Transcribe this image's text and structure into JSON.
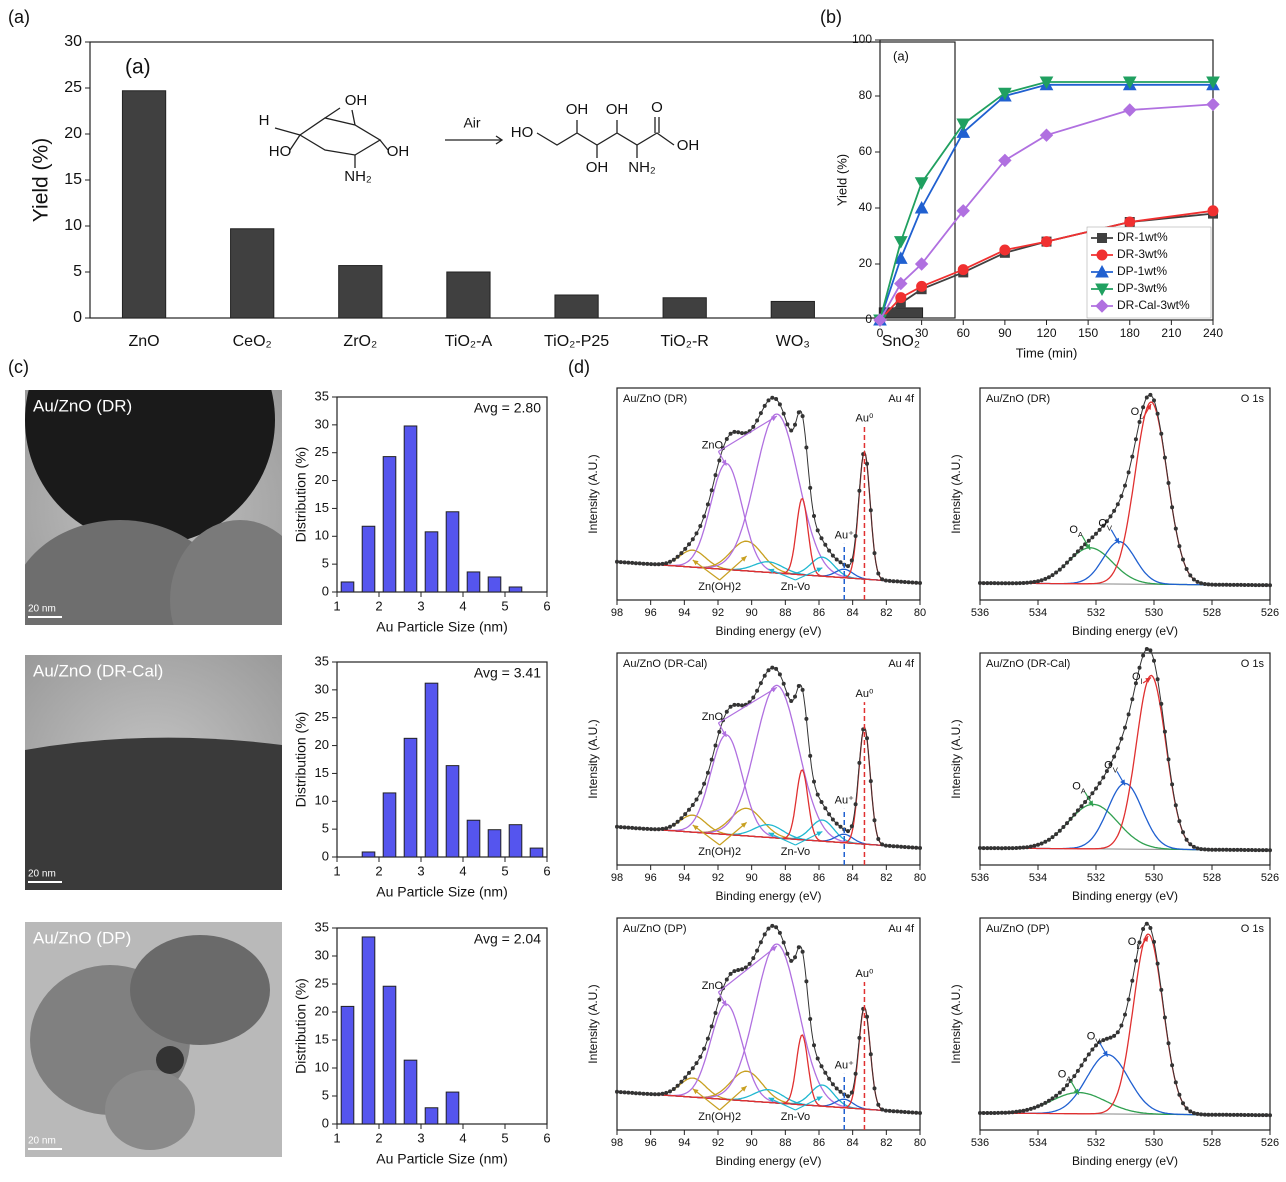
{
  "panel_labels": [
    "(a)",
    "(b)",
    "(c)",
    "(d)"
  ],
  "images": [
    {
      "label": "Au/ZnO (DR)",
      "scale": "20 nm"
    },
    {
      "label": "Au/ZnO (DR-Cal)",
      "scale": "20 nm"
    },
    {
      "label": "Au/ZnO (DP)",
      "scale": "20 nm"
    }
  ],
  "chart_data": [
    {
      "type": "bar",
      "annotation": "(a)",
      "ylabel": "Yield (%)",
      "categories": [
        "ZnO",
        "CeO₂",
        "ZrO₂",
        "TiO₂-A",
        "TiO₂-P25",
        "TiO₂-R",
        "WO₃",
        "SnO₂"
      ],
      "values": [
        24.7,
        9.7,
        5.7,
        5.0,
        2.5,
        2.2,
        1.8,
        1.1
      ],
      "color": "#404040",
      "ylim": [
        0,
        30
      ],
      "yticks": [
        0,
        5,
        10,
        15,
        20,
        25,
        30
      ],
      "scheme": {
        "reactant_labels": [
          "OH",
          "H",
          "HO",
          "OH",
          "NH₂"
        ],
        "arrow_label": "Air",
        "product_labels": [
          "HO",
          "OH",
          "OH",
          "O",
          "OH",
          "OH",
          "NH₂"
        ]
      }
    },
    {
      "type": "line",
      "annotation": "(a)",
      "xlabel": "Time (min)",
      "ylabel": "Yield (%)",
      "x": [
        0,
        15,
        30,
        60,
        90,
        120,
        180,
        240
      ],
      "xlim": [
        0,
        240
      ],
      "xticks": [
        0,
        30,
        60,
        90,
        120,
        150,
        180,
        210,
        240
      ],
      "ylim": [
        0,
        100
      ],
      "yticks": [
        0,
        20,
        40,
        60,
        80,
        100
      ],
      "legend": "lower right",
      "series": [
        {
          "name": "DR-1wt%",
          "color": "#404040",
          "marker": "square",
          "values": [
            0,
            6,
            11,
            17,
            24,
            28,
            35,
            38
          ]
        },
        {
          "name": "DR-3wt%",
          "color": "#f03030",
          "marker": "circle",
          "values": [
            0,
            8,
            12,
            18,
            25,
            28,
            35,
            39
          ]
        },
        {
          "name": "DP-1wt%",
          "color": "#2060d0",
          "marker": "triangle-up",
          "values": [
            0,
            22,
            40,
            67,
            80,
            84,
            84,
            84
          ]
        },
        {
          "name": "DP-3wt%",
          "color": "#20a060",
          "marker": "triangle-down",
          "values": [
            0,
            28,
            49,
            70,
            81,
            85,
            85,
            85
          ]
        },
        {
          "name": "DR-Cal-3wt%",
          "color": "#b070e0",
          "marker": "diamond",
          "values": [
            0,
            13,
            20,
            39,
            57,
            66,
            75,
            77
          ]
        }
      ]
    },
    {
      "type": "bar",
      "annotation": "Avg = 2.80",
      "xlabel": "Au Particle Size (nm)",
      "ylabel": "Distribution (%)",
      "color": "#5555ee",
      "x": [
        1.25,
        1.75,
        2.25,
        2.75,
        3.25,
        3.75,
        4.25,
        4.75,
        5.25
      ],
      "values": [
        1.8,
        11.8,
        24.3,
        29.8,
        10.8,
        14.4,
        3.6,
        2.7,
        0.9
      ],
      "xlim": [
        1,
        6
      ],
      "xticks": [
        1,
        2,
        3,
        4,
        5,
        6
      ],
      "ylim": [
        0,
        35
      ],
      "yticks": [
        0,
        5,
        10,
        15,
        20,
        25,
        30,
        35
      ]
    },
    {
      "type": "bar",
      "annotation": "Avg = 3.41",
      "xlabel": "Au Particle Size (nm)",
      "ylabel": "Distribution (%)",
      "color": "#5555ee",
      "x": [
        1.75,
        2.25,
        2.75,
        3.25,
        3.75,
        4.25,
        4.75,
        5.25,
        5.75
      ],
      "values": [
        0.9,
        11.5,
        21.3,
        31.2,
        16.4,
        6.6,
        4.9,
        5.8,
        1.6
      ],
      "xlim": [
        1,
        6
      ],
      "xticks": [
        1,
        2,
        3,
        4,
        5,
        6
      ],
      "ylim": [
        0,
        35
      ],
      "yticks": [
        0,
        5,
        10,
        15,
        20,
        25,
        30,
        35
      ]
    },
    {
      "type": "bar",
      "annotation": "Avg = 2.04",
      "xlabel": "Au Particle Size (nm)",
      "ylabel": "Distribution (%)",
      "color": "#5555ee",
      "x": [
        1.25,
        1.75,
        2.25,
        2.75,
        3.25,
        3.75
      ],
      "values": [
        21.0,
        33.4,
        24.6,
        11.4,
        2.9,
        5.7
      ],
      "xlim": [
        1,
        6
      ],
      "xticks": [
        1,
        2,
        3,
        4,
        5,
        6
      ],
      "ylim": [
        0,
        35
      ],
      "yticks": [
        0,
        5,
        10,
        15,
        20,
        25,
        30,
        35
      ]
    },
    {
      "type": "spectrum",
      "title": "Au/ZnO (DR)",
      "region": "Au 4f",
      "xlabel": "Binding energy (eV)",
      "ylabel": "Intensity (A.U.)",
      "xlim": [
        98,
        80
      ],
      "xticks": [
        98,
        96,
        94,
        92,
        90,
        88,
        86,
        84,
        82,
        80
      ],
      "ylim": [
        0,
        100
      ],
      "background_x": [
        98,
        80
      ],
      "background": [
        18,
        8
      ],
      "components": [
        {
          "name": "Zn(OH)2",
          "color": "#c8a020",
          "peaks": [
            {
              "center": 93.5,
              "height": 8,
              "fwhm": 1.8
            },
            {
              "center": 90.3,
              "height": 14,
              "fwhm": 2.2
            }
          ]
        },
        {
          "name": "ZnO",
          "color": "#b070e0",
          "peaks": [
            {
              "center": 91.5,
              "height": 50,
              "fwhm": 2.2
            },
            {
              "center": 88.5,
              "height": 75,
              "fwhm": 3.0
            }
          ]
        },
        {
          "name": "Zn-Vo",
          "color": "#20b8d0",
          "peaks": [
            {
              "center": 89.0,
              "height": 5,
              "fwhm": 2.0
            },
            {
              "center": 85.8,
              "height": 9,
              "fwhm": 1.6
            }
          ]
        },
        {
          "name": "Au⁺",
          "color": "#2060d0",
          "dashed": true,
          "peaks": [
            {
              "center": 84.5,
              "height": 4,
              "fwhm": 1.2
            }
          ]
        },
        {
          "name": "Au⁰",
          "color": "#e03030",
          "dashed": true,
          "peaks": [
            {
              "center": 83.3,
              "height": 60,
              "fwhm": 0.8
            },
            {
              "center": 87.0,
              "height": 36,
              "fwhm": 0.8
            }
          ]
        }
      ]
    },
    {
      "type": "spectrum",
      "title": "Au/ZnO (DR)",
      "region": "O 1s",
      "xlabel": "Binding energy (eV)",
      "ylabel": "Intensity (A.U.)",
      "xlim": [
        536,
        526
      ],
      "xticks": [
        536,
        534,
        532,
        530,
        528,
        526
      ],
      "ylim": [
        0,
        100
      ],
      "background_x": [
        536,
        526
      ],
      "background": [
        8,
        7
      ],
      "components": [
        {
          "name": {
            "text": "O",
            "sub": "A"
          },
          "color": "#30a050",
          "peaks": [
            {
              "center": 532.2,
              "height": 17,
              "fwhm": 1.8
            }
          ]
        },
        {
          "name": {
            "text": "O",
            "sub": "V"
          },
          "color": "#2060d0",
          "peaks": [
            {
              "center": 531.2,
              "height": 20,
              "fwhm": 1.3
            }
          ]
        },
        {
          "name": {
            "text": "O",
            "sub": "L"
          },
          "color": "#e03030",
          "peaks": [
            {
              "center": 530.1,
              "height": 86,
              "fwhm": 1.3
            }
          ]
        }
      ]
    },
    {
      "type": "spectrum",
      "title": "Au/ZnO (DR-Cal)",
      "region": "Au 4f",
      "xlabel": "Binding energy (eV)",
      "ylabel": "Intensity (A.U.)",
      "xlim": [
        98,
        80
      ],
      "xticks": [
        98,
        96,
        94,
        92,
        90,
        88,
        86,
        84,
        82,
        80
      ],
      "ylim": [
        0,
        100
      ],
      "background_x": [
        98,
        80
      ],
      "background": [
        18,
        8
      ],
      "components": [
        {
          "name": "Zn(OH)2",
          "color": "#c8a020",
          "peaks": [
            {
              "center": 93.5,
              "height": 8,
              "fwhm": 1.8
            },
            {
              "center": 90.3,
              "height": 13,
              "fwhm": 2.2
            }
          ]
        },
        {
          "name": "ZnO",
          "color": "#b070e0",
          "peaks": [
            {
              "center": 91.5,
              "height": 47,
              "fwhm": 2.2
            },
            {
              "center": 88.5,
              "height": 72,
              "fwhm": 3.0
            }
          ]
        },
        {
          "name": "Zn-Vo",
          "color": "#20b8d0",
          "peaks": [
            {
              "center": 89.0,
              "height": 6,
              "fwhm": 2.0
            },
            {
              "center": 85.8,
              "height": 10,
              "fwhm": 1.6
            }
          ]
        },
        {
          "name": "Au⁺",
          "color": "#2060d0",
          "dashed": true,
          "peaks": [
            {
              "center": 84.5,
              "height": 4,
              "fwhm": 1.2
            }
          ]
        },
        {
          "name": "Au⁰",
          "color": "#e03030",
          "dashed": true,
          "peaks": [
            {
              "center": 83.3,
              "height": 55,
              "fwhm": 0.8
            },
            {
              "center": 87.0,
              "height": 33,
              "fwhm": 0.8
            }
          ]
        }
      ]
    },
    {
      "type": "spectrum",
      "title": "Au/ZnO (DR-Cal)",
      "region": "O 1s",
      "xlabel": "Binding energy (eV)",
      "ylabel": "Intensity (A.U.)",
      "xlim": [
        536,
        526
      ],
      "xticks": [
        536,
        534,
        532,
        530,
        528,
        526
      ],
      "ylim": [
        0,
        100
      ],
      "background_x": [
        536,
        526
      ],
      "background": [
        8,
        7
      ],
      "components": [
        {
          "name": {
            "text": "O",
            "sub": "A"
          },
          "color": "#30a050",
          "peaks": [
            {
              "center": 532.1,
              "height": 21,
              "fwhm": 2.0
            }
          ]
        },
        {
          "name": {
            "text": "O",
            "sub": "V"
          },
          "color": "#2060d0",
          "peaks": [
            {
              "center": 531.0,
              "height": 31,
              "fwhm": 1.4
            }
          ]
        },
        {
          "name": {
            "text": "O",
            "sub": "l"
          },
          "color": "#e03030",
          "peaks": [
            {
              "center": 530.1,
              "height": 82,
              "fwhm": 1.2
            }
          ]
        }
      ]
    },
    {
      "type": "spectrum",
      "title": "Au/ZnO (DP)",
      "region": "Au 4f",
      "xlabel": "Binding energy (eV)",
      "ylabel": "Intensity (A.U.)",
      "xlim": [
        98,
        80
      ],
      "xticks": [
        98,
        96,
        94,
        92,
        90,
        88,
        86,
        84,
        82,
        80
      ],
      "ylim": [
        0,
        100
      ],
      "background_x": [
        98,
        80
      ],
      "background": [
        18,
        8
      ],
      "components": [
        {
          "name": "Zn(OH)2",
          "color": "#c8a020",
          "peaks": [
            {
              "center": 93.5,
              "height": 9,
              "fwhm": 1.8
            },
            {
              "center": 90.3,
              "height": 14,
              "fwhm": 2.2
            }
          ]
        },
        {
          "name": "ZnO",
          "color": "#b070e0",
          "peaks": [
            {
              "center": 91.5,
              "height": 45,
              "fwhm": 2.2
            },
            {
              "center": 88.5,
              "height": 75,
              "fwhm": 3.0
            }
          ]
        },
        {
          "name": "Zn-Vo",
          "color": "#20b8d0",
          "peaks": [
            {
              "center": 89.0,
              "height": 6,
              "fwhm": 2.0
            },
            {
              "center": 85.8,
              "height": 10,
              "fwhm": 1.6
            }
          ]
        },
        {
          "name": "Au⁺",
          "color": "#2060d0",
          "dashed": true,
          "peaks": [
            {
              "center": 84.5,
              "height": 4,
              "fwhm": 1.2
            }
          ]
        },
        {
          "name": "Au⁰",
          "color": "#e03030",
          "dashed": true,
          "peaks": [
            {
              "center": 83.3,
              "height": 48,
              "fwhm": 0.8
            },
            {
              "center": 87.0,
              "height": 33,
              "fwhm": 0.8
            }
          ]
        }
      ]
    },
    {
      "type": "spectrum",
      "title": "Au/ZnO (DP)",
      "region": "O 1s",
      "xlabel": "Binding energy (eV)",
      "ylabel": "Intensity (A.U.)",
      "xlim": [
        536,
        526
      ],
      "xticks": [
        536,
        534,
        532,
        530,
        528,
        526
      ],
      "ylim": [
        0,
        100
      ],
      "background_x": [
        536,
        526
      ],
      "background": [
        8,
        7
      ],
      "components": [
        {
          "name": {
            "text": "O",
            "sub": "A"
          },
          "color": "#30a050",
          "peaks": [
            {
              "center": 532.6,
              "height": 10,
              "fwhm": 2.2
            }
          ]
        },
        {
          "name": {
            "text": "O",
            "sub": "V"
          },
          "color": "#2060d0",
          "peaks": [
            {
              "center": 531.6,
              "height": 28,
              "fwhm": 1.7
            }
          ]
        },
        {
          "name": {
            "text": "O",
            "sub": "L"
          },
          "color": "#e03030",
          "peaks": [
            {
              "center": 530.2,
              "height": 85,
              "fwhm": 1.2
            }
          ]
        }
      ]
    }
  ]
}
